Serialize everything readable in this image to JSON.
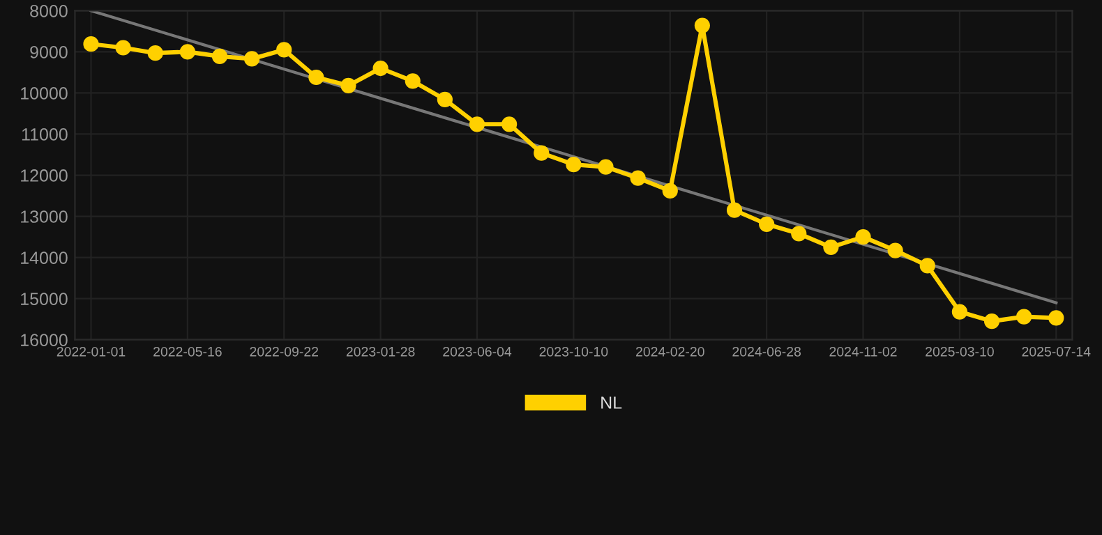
{
  "chart_data": {
    "type": "line",
    "categories": [
      "2022-01-01",
      null,
      null,
      "2022-05-16",
      null,
      null,
      "2022-09-22",
      null,
      null,
      "2023-01-28",
      null,
      null,
      "2023-06-04",
      null,
      null,
      "2023-10-10",
      null,
      null,
      "2024-02-20",
      null,
      null,
      "2024-06-28",
      null,
      null,
      "2024-11-02",
      null,
      null,
      "2025-03-10",
      null,
      null,
      "2025-07-14"
    ],
    "series": [
      {
        "name": "NL",
        "color": "#ffd000",
        "marker": "circle",
        "values": [
          8810,
          8900,
          9030,
          9000,
          9110,
          9170,
          8950,
          9620,
          9820,
          9400,
          9710,
          10160,
          10760,
          10760,
          11460,
          11740,
          11800,
          12070,
          12380,
          8360,
          12850,
          13190,
          13420,
          13750,
          13500,
          13830,
          14200,
          15320,
          15550,
          15440,
          15470
        ]
      },
      {
        "color": "#777777",
        "marker": "none",
        "values": [
          8000,
          null,
          null,
          null,
          null,
          null,
          null,
          null,
          null,
          null,
          null,
          null,
          null,
          null,
          null,
          null,
          null,
          null,
          null,
          null,
          null,
          null,
          null,
          null,
          null,
          null,
          null,
          null,
          null,
          null,
          15100
        ]
      }
    ],
    "ylim": [
      16000,
      8000
    ],
    "yticks": [
      8000,
      9000,
      10000,
      11000,
      12000,
      13000,
      14000,
      15000,
      16000
    ],
    "grid": true,
    "legend": "bottom",
    "line_style": "solid"
  }
}
